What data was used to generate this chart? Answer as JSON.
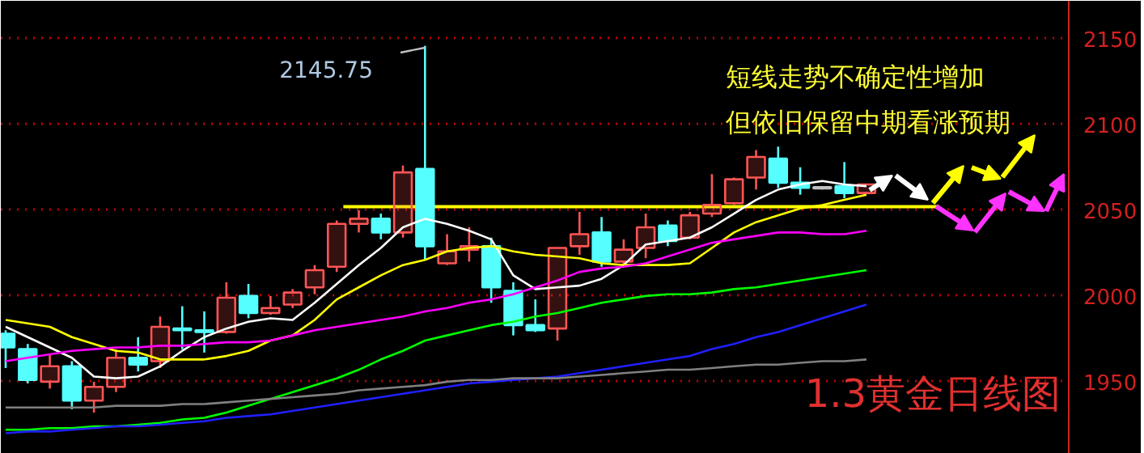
{
  "chart_data": {
    "type": "candlestick",
    "categories": [
      null,
      null,
      null,
      null,
      null,
      null,
      null,
      null,
      null,
      null,
      null,
      null,
      null,
      null,
      null,
      null,
      null,
      null,
      null,
      null,
      null,
      null,
      null,
      null,
      null,
      null,
      null,
      null,
      null,
      null,
      null,
      null,
      null,
      null,
      null,
      null,
      null,
      null,
      null,
      null
    ],
    "ohlc": [
      [
        1978,
        1980,
        1958,
        1970
      ],
      [
        1969,
        1972,
        1949,
        1951
      ],
      [
        1950,
        1966,
        1946,
        1959
      ],
      [
        1959,
        1962,
        1934,
        1939
      ],
      [
        1939,
        1950,
        1932,
        1947
      ],
      [
        1947,
        1969,
        1944,
        1964
      ],
      [
        1964,
        1976,
        1956,
        1960
      ],
      [
        1962,
        1988,
        1958,
        1982
      ],
      [
        1981,
        1994,
        1969,
        1980
      ],
      [
        1980,
        1991,
        1967,
        1979
      ],
      [
        1979,
        2008,
        1978,
        1999
      ],
      [
        2000,
        2007,
        1987,
        1990
      ],
      [
        1990,
        2000,
        1989,
        1993
      ],
      [
        1995,
        2004,
        1993,
        2002
      ],
      [
        2005,
        2018,
        2001,
        2015
      ],
      [
        2017,
        2044,
        2014,
        2042
      ],
      [
        2042,
        2050,
        2037,
        2045
      ],
      [
        2045,
        2048,
        2033,
        2037
      ],
      [
        2037,
        2076,
        2034,
        2072
      ],
      [
        2074,
        2145.75,
        2021,
        2029
      ],
      [
        2019,
        2036,
        2018,
        2026
      ],
      [
        2027,
        2040,
        2020,
        2029
      ],
      [
        2029,
        2034,
        1996,
        2005
      ],
      [
        2003,
        2008,
        1977,
        1983
      ],
      [
        1983,
        1998,
        1979,
        1980
      ],
      [
        1981,
        2028,
        1974,
        2028
      ],
      [
        2029,
        2049,
        2024,
        2036
      ],
      [
        2037,
        2046,
        2017,
        2020
      ],
      [
        2020,
        2033,
        2018,
        2027
      ],
      [
        2028,
        2048,
        2022,
        2040
      ],
      [
        2041,
        2044,
        2029,
        2032
      ],
      [
        2034,
        2049,
        2033,
        2047
      ],
      [
        2048,
        2071,
        2046,
        2053
      ],
      [
        2054,
        2069,
        2053,
        2068
      ],
      [
        2069,
        2085,
        2062,
        2081
      ],
      [
        2080,
        2087,
        2063,
        2066
      ],
      [
        2066,
        2075,
        2059,
        2063
      ],
      [
        2063,
        2064,
        2062,
        2063
      ],
      [
        2064,
        2078,
        2057,
        2060
      ],
      [
        2060,
        2065,
        2060,
        2065
      ]
    ],
    "colors": [
      "#55ffff",
      "#55ffff",
      "#ff5555",
      "#55ffff",
      "#ff5555",
      "#ff5555",
      "#55ffff",
      "#ff5555",
      "#55ffff",
      "#55ffff",
      "#ff5555",
      "#55ffff",
      "#ff5555",
      "#ff5555",
      "#ff5555",
      "#ff5555",
      "#ff5555",
      "#55ffff",
      "#ff5555",
      "#55ffff",
      "#ff5555",
      "#ff5555",
      "#55ffff",
      "#55ffff",
      "#55ffff",
      "#ff5555",
      "#ff5555",
      "#55ffff",
      "#ff5555",
      "#ff5555",
      "#55ffff",
      "#ff5555",
      "#ff5555",
      "#ff5555",
      "#ff5555",
      "#55ffff",
      "#55ffff",
      "#c0c0c0",
      "#55ffff",
      "#ff5555"
    ],
    "series": [
      {
        "type": "line",
        "color": "#ffffff",
        "values": [
          1982,
          1976,
          1970,
          1964,
          1953,
          1952,
          1953,
          1959,
          1968,
          1976,
          1981,
          1985,
          1987,
          1986,
          1996,
          2007,
          2018,
          2028,
          2040,
          2045,
          2042,
          2038,
          2033,
          2012,
          2004,
          2005,
          2006,
          2010,
          2018,
          2030,
          2032,
          2034,
          2040,
          2048,
          2056,
          2062,
          2065,
          2067,
          2065,
          2064
        ]
      },
      {
        "type": "line",
        "color": "#ffff00",
        "values": [
          1986,
          1984,
          1982,
          1976,
          1972,
          1968,
          1967,
          1963,
          1963,
          1963,
          1965,
          1968,
          1974,
          1977,
          1986,
          1998,
          2005,
          2012,
          2018,
          2021,
          2026,
          2028,
          2029,
          2026,
          2024,
          2023,
          2022,
          2019,
          2018,
          2018,
          2018,
          2019,
          2028,
          2037,
          2043,
          2047,
          2051,
          2053,
          2056,
          2059
        ]
      },
      {
        "type": "line",
        "color": "#ff00ff",
        "values": [
          1962,
          1964,
          1966,
          1968,
          1969,
          1970,
          1970,
          1971,
          1971,
          1972,
          1973,
          1973,
          1974,
          1977,
          1980,
          1982,
          1984,
          1986,
          1988,
          1991,
          1993,
          1996,
          1998,
          2001,
          2005,
          2009,
          2014,
          2016,
          2017,
          2019,
          2023,
          2027,
          2031,
          2033,
          2035,
          2037,
          2037,
          2036,
          2036,
          2038
        ]
      },
      {
        "type": "line",
        "color": "#00ff00",
        "values": [
          1922,
          1922,
          1923,
          1923,
          1924,
          1924,
          1925,
          1926,
          1928,
          1929,
          1932,
          1936,
          1940,
          1944,
          1948,
          1952,
          1957,
          1963,
          1968,
          1974,
          1977,
          1980,
          1983,
          1985,
          1988,
          1990,
          1993,
          1996,
          1998,
          2000,
          2001,
          2001,
          2002,
          2004,
          2005,
          2007,
          2009,
          2011,
          2013,
          2015
        ]
      },
      {
        "type": "line",
        "color": "#2020ff",
        "values": [
          1920,
          1921,
          1921,
          1922,
          1923,
          1924,
          1924,
          1925,
          1926,
          1927,
          1929,
          1930,
          1931,
          1933,
          1935,
          1937,
          1939,
          1941,
          1943,
          1945,
          1947,
          1949,
          1950,
          1951,
          1952,
          1953,
          1955,
          1957,
          1959,
          1961,
          1963,
          1965,
          1969,
          1972,
          1976,
          1979,
          1983,
          1987,
          1991,
          1995
        ]
      },
      {
        "type": "line",
        "color": "#808080",
        "values": [
          1935,
          1935,
          1935,
          1935,
          1935,
          1936,
          1936,
          1936,
          1937,
          1937,
          1938,
          1939,
          1940,
          1941,
          1942,
          1943,
          1945,
          1946,
          1947,
          1948,
          1950,
          1951,
          1951,
          1952,
          1952,
          1952,
          1953,
          1954,
          1955,
          1956,
          1957,
          1957,
          1958,
          1959,
          1960,
          1960,
          1961,
          1962,
          1962,
          1963
        ]
      }
    ],
    "ref_lines": [
      {
        "axis": "y",
        "value": 2052,
        "color": "#ffff00"
      }
    ],
    "ylim": [
      1908,
      2172
    ],
    "yticks": [
      1950,
      2000,
      2050,
      2100,
      2150
    ],
    "tick_labels": "y",
    "grid": "y",
    "annotations": [
      "短线走势不确定性增加",
      "但依旧保留中期看涨预期",
      "1.3黄金日线图",
      "2145.75"
    ]
  }
}
